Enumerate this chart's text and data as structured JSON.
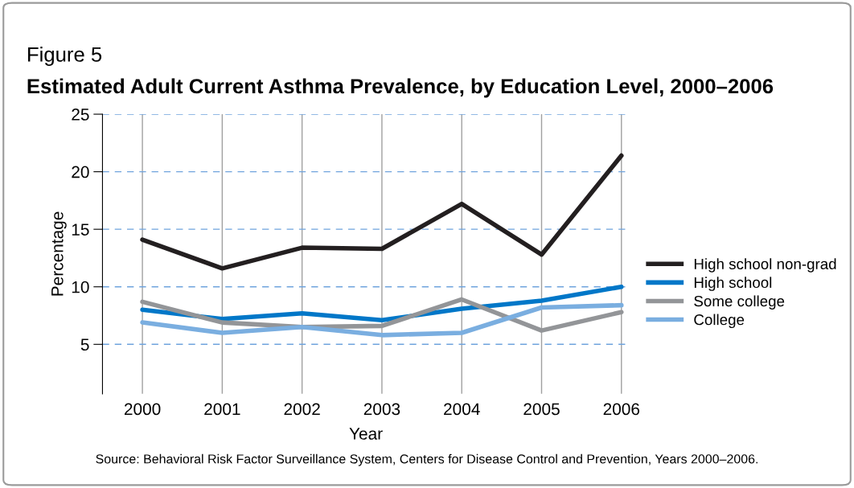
{
  "chart_data": {
    "type": "line",
    "title": "Estimated Adult Current Asthma Prevalence, by Education Level, 2000–2006",
    "xlabel": "Year",
    "ylabel": "Percentage",
    "annotations": [
      "Figure 5",
      "Source: Behavioral Risk Factor Surveillance System, Centers for Disease Control and Prevention, Years 2000–2006."
    ],
    "categories": [
      "2000",
      "2001",
      "2002",
      "2003",
      "2004",
      "2005",
      "2006"
    ],
    "series": [
      {
        "name": "High school non-grad",
        "color": "#231f20",
        "values": [
          14.1,
          11.6,
          13.4,
          13.3,
          17.2,
          12.8,
          21.4
        ]
      },
      {
        "name": "High school",
        "color": "#0077c8",
        "values": [
          8.0,
          7.2,
          7.7,
          7.1,
          8.1,
          8.8,
          10.0
        ]
      },
      {
        "name": "Some college",
        "color": "#939598",
        "values": [
          8.7,
          6.9,
          6.5,
          6.6,
          8.9,
          6.2,
          7.8
        ]
      },
      {
        "name": "College",
        "color": "#7aaee0",
        "values": [
          6.9,
          6.0,
          6.5,
          5.8,
          6.0,
          8.2,
          8.4
        ]
      }
    ],
    "ylim": [
      0.7,
      25
    ],
    "yticks": [
      5,
      10,
      15,
      20,
      25
    ],
    "grid": true,
    "legend": "right",
    "marker": "none",
    "line_style": "solid"
  }
}
